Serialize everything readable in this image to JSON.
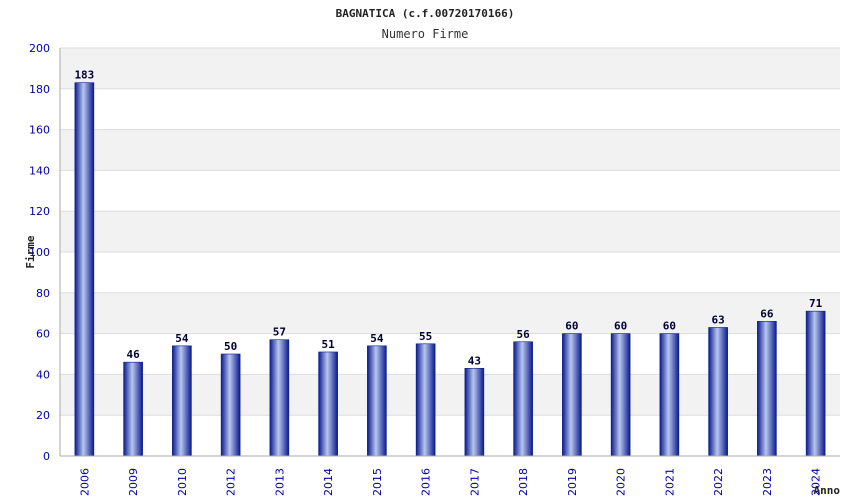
{
  "chart_data": {
    "type": "bar",
    "title": "BAGNATICA (c.f.00720170166)",
    "subtitle": "Numero Firme",
    "xlabel": "Anno",
    "ylabel": "Firme",
    "ylim": [
      0,
      200
    ],
    "yticks": [
      0,
      20,
      40,
      60,
      80,
      100,
      120,
      140,
      160,
      180,
      200
    ],
    "grid": true,
    "categories": [
      "2006",
      "2009",
      "2010",
      "2012",
      "2013",
      "2014",
      "2015",
      "2016",
      "2017",
      "2018",
      "2019",
      "2020",
      "2021",
      "2022",
      "2023",
      "2024"
    ],
    "values": [
      183,
      46,
      54,
      50,
      57,
      51,
      54,
      55,
      43,
      56,
      60,
      60,
      60,
      63,
      66,
      71
    ],
    "colors": {
      "bar_dark": "#0a1a8c",
      "bar_light": "#b8c6f0",
      "band": "#f2f2f2",
      "grid": "#dddddd",
      "axis": "#aaaaaa"
    }
  }
}
